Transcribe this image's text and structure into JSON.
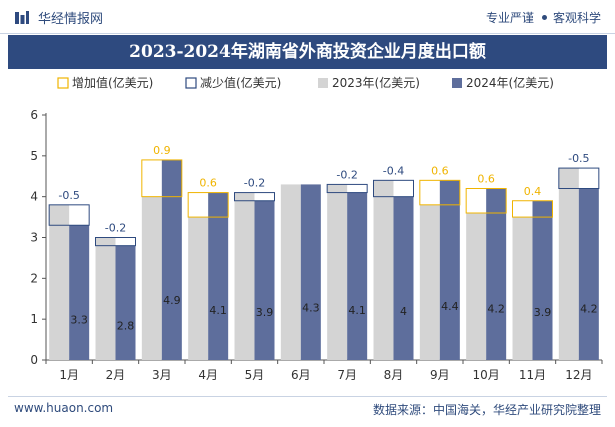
{
  "header": {
    "brand_name": "华经情报网",
    "tag_left": "专业严谨",
    "tag_right": "客观科学"
  },
  "footer": {
    "website": "www.huaon.com",
    "source": "数据来源：中国海关，华经产业研究院整理"
  },
  "colors": {
    "brand_blue": "#2e4a7f",
    "series_2023": "#d4d4d4",
    "series_2024": "#5e6e9c",
    "increase": "#f0b400",
    "decrease": "#2e4a7f"
  },
  "chart_data": {
    "type": "bar",
    "title": "2023-2024年湖南省外商投资企业月度出口额",
    "categories": [
      "1月",
      "2月",
      "3月",
      "4月",
      "5月",
      "6月",
      "7月",
      "8月",
      "9月",
      "10月",
      "11月",
      "12月"
    ],
    "series": [
      {
        "name": "2023年(亿美元)",
        "values": [
          3.8,
          3.0,
          4.0,
          3.5,
          4.1,
          4.3,
          4.3,
          4.4,
          3.8,
          3.6,
          3.5,
          4.7
        ]
      },
      {
        "name": "2024年(亿美元)",
        "values": [
          3.3,
          2.8,
          4.9,
          4.1,
          3.9,
          4.3,
          4.1,
          4.0,
          4.4,
          4.2,
          3.9,
          4.2
        ]
      }
    ],
    "value_labels_2024": [
      "3.3",
      "2.8",
      "4.9",
      "4.1",
      "3.9",
      "4.3",
      "4.1",
      "4",
      "4.4",
      "4.2",
      "3.9",
      "4.2"
    ],
    "change_labels": [
      "-0.5",
      "-0.2",
      "0.9",
      "0.6",
      "-0.2",
      "",
      "-0.2",
      "-0.4",
      "0.6",
      "0.6",
      "0.4",
      "-0.5"
    ],
    "legend": [
      "增加值(亿美元)",
      "减少值(亿美元)",
      "2023年(亿美元)",
      "2024年(亿美元)"
    ],
    "legend_position": "top",
    "yticks": [
      "0",
      "1",
      "2",
      "3",
      "4",
      "5",
      "6"
    ],
    "ylim": [
      0,
      6
    ],
    "xlabel": "",
    "ylabel": "",
    "grid": false
  }
}
